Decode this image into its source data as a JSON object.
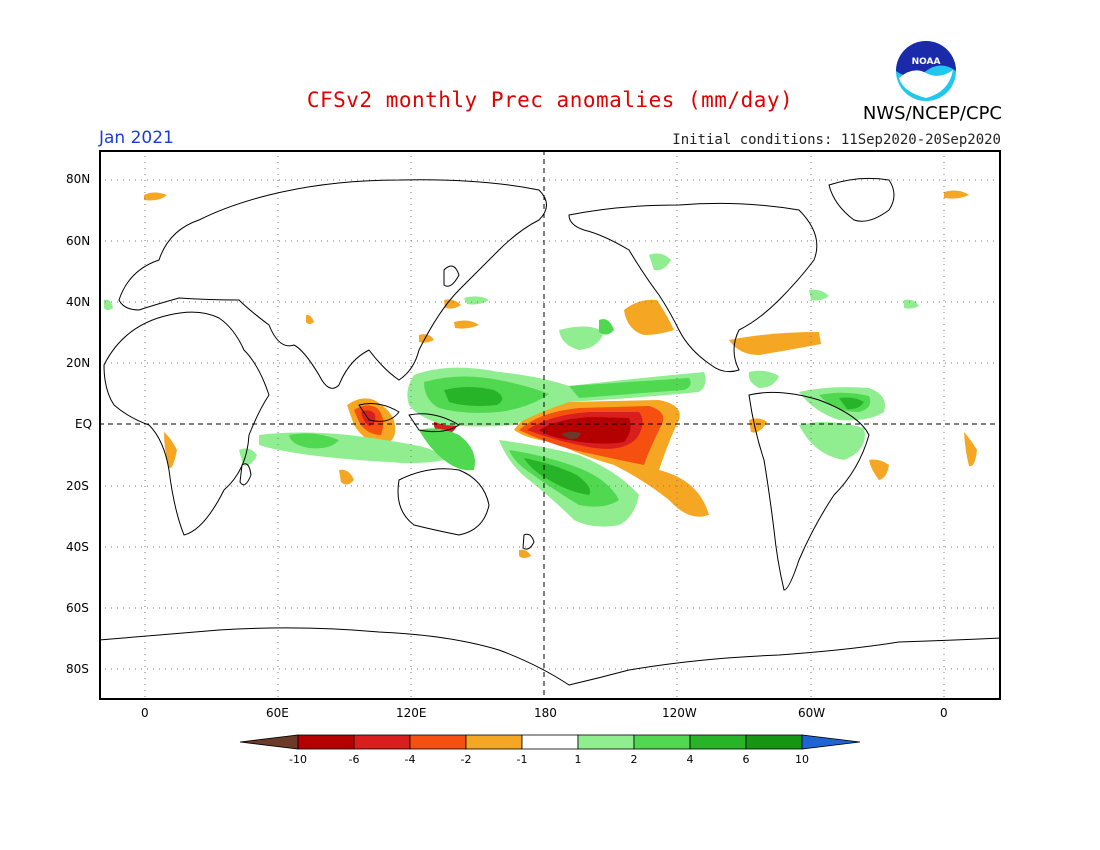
{
  "header": {
    "title": "CFSv2 monthly Prec anomalies (mm/day)",
    "target_month": "Jan 2021",
    "initial_conditions": "Initial conditions: 11Sep2020-20Sep2020",
    "agency": "NWS/NCEP/CPC",
    "logo_text": "NOAA"
  },
  "axes": {
    "lat_labels": [
      "80N",
      "60N",
      "40N",
      "20N",
      "EQ",
      "20S",
      "40S",
      "60S",
      "80S"
    ],
    "lat_values": [
      80,
      60,
      40,
      20,
      0,
      -20,
      -40,
      -60,
      -80
    ],
    "lon_labels": [
      "0",
      "60E",
      "120E",
      "180",
      "120W",
      "60W",
      "0"
    ],
    "lon_values": [
      0,
      60,
      120,
      180,
      240,
      300,
      360
    ]
  },
  "colorbar": {
    "tick_labels": [
      "-10",
      "-6",
      "-4",
      "-2",
      "-1",
      "1",
      "2",
      "4",
      "6",
      "10"
    ],
    "colors": [
      "#6b3a28",
      "#b40000",
      "#d81e1e",
      "#f5500f",
      "#f5a623",
      "#ffffff",
      "#90ee90",
      "#50d850",
      "#28b428",
      "#149614",
      "#1e64d2"
    ]
  },
  "map_style": {
    "land_outline_color": "#000000",
    "grid_style": "dotted",
    "reference_lines": [
      "equator",
      "dateline"
    ]
  }
}
